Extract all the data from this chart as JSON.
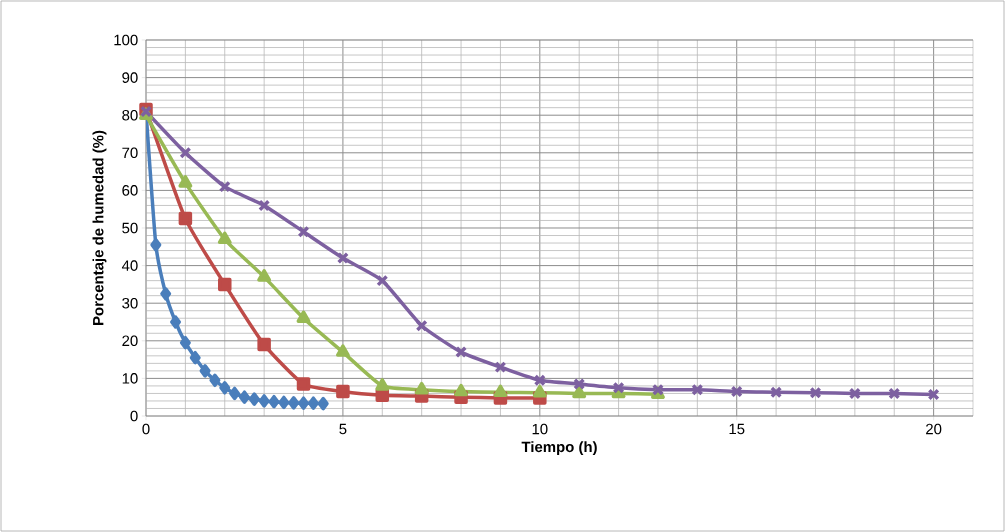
{
  "chart_data": {
    "type": "line",
    "xlabel": "Tiempo (h)",
    "ylabel": "Porcentaje de humedad (%)",
    "xlim": [
      0,
      21
    ],
    "ylim": [
      0,
      100
    ],
    "xticks": [
      0,
      5,
      10,
      15,
      20
    ],
    "yticks": [
      0,
      10,
      20,
      30,
      40,
      50,
      60,
      70,
      80,
      90,
      100
    ],
    "grid": true,
    "series": [
      {
        "color": "#4a7ebb",
        "marker": "diamond",
        "x": [
          0,
          0.25,
          0.5,
          0.75,
          1,
          1.25,
          1.5,
          1.75,
          2,
          2.25,
          2.5,
          2.75,
          3,
          3.25,
          3.5,
          3.75,
          4,
          4.25,
          4.5
        ],
        "values": [
          81,
          45.5,
          32.5,
          25,
          19.5,
          15.5,
          12,
          9.5,
          7.5,
          6,
          5,
          4.5,
          4,
          3.8,
          3.6,
          3.5,
          3.4,
          3.4,
          3.3
        ]
      },
      {
        "color": "#be4b48",
        "marker": "square",
        "x": [
          0,
          1,
          2,
          3,
          4,
          5,
          6,
          7,
          8,
          9,
          10
        ],
        "values": [
          81.5,
          52.5,
          35,
          19,
          8.5,
          6.5,
          5.5,
          5.3,
          5,
          4.8,
          4.8
        ]
      },
      {
        "color": "#98b954",
        "marker": "triangle",
        "x": [
          0,
          1,
          2,
          3,
          4,
          5,
          6,
          7,
          8,
          9,
          10,
          11,
          12,
          13
        ],
        "values": [
          80,
          62,
          47,
          37,
          26,
          17,
          8,
          7,
          6.5,
          6.3,
          6.2,
          6,
          6,
          5.8
        ]
      },
      {
        "color": "#7d60a0",
        "marker": "cross",
        "x": [
          0,
          1,
          2,
          3,
          4,
          5,
          6,
          7,
          8,
          9,
          10,
          11,
          12,
          13,
          14,
          15,
          16,
          17,
          18,
          19,
          20
        ],
        "values": [
          81,
          70,
          61,
          56,
          49,
          42,
          36,
          24,
          17,
          13,
          9.5,
          8.5,
          7.5,
          7,
          7,
          6.5,
          6.3,
          6.2,
          6,
          6,
          5.7
        ]
      }
    ]
  }
}
